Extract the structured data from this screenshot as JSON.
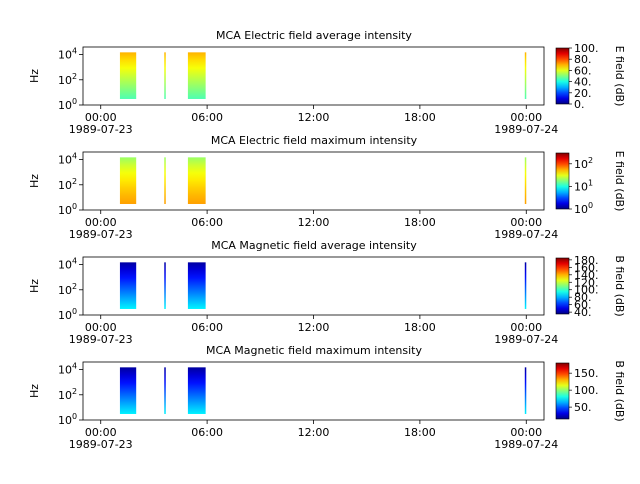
{
  "chart_data": [
    {
      "type": "heatmap",
      "title": "MCA  Electric field average intensity",
      "ylabel": "Hz",
      "y_ticks": [
        {
          "base": "10",
          "exp": "0"
        },
        {
          "base": "10",
          "exp": "2"
        },
        {
          "base": "10",
          "exp": "4"
        }
      ],
      "x_ticks": [
        "00:00",
        "06:00",
        "12:00",
        "18:00",
        "00:00"
      ],
      "x_dates": [
        "1989-07-23",
        "1989-07-24"
      ],
      "colorbar_label": "E field (dB)",
      "colorbar_ticks": [
        "0.",
        "20.",
        "40.",
        "60.",
        "80.",
        "100."
      ],
      "colorbar_range": [
        0,
        100
      ],
      "data_blocks": [
        {
          "start": "01:05",
          "end": "02:00",
          "fmin_hz": 3,
          "fmax_hz": 15000,
          "low_db": 45,
          "high_db": 70
        },
        {
          "start": "03:35",
          "end": "03:40",
          "fmin_hz": 3,
          "fmax_hz": 15000,
          "low_db": 45,
          "high_db": 70
        },
        {
          "start": "04:55",
          "end": "05:55",
          "fmin_hz": 3,
          "fmax_hz": 15000,
          "low_db": 45,
          "high_db": 70
        },
        {
          "start": "23:55",
          "end": "23:58",
          "fmin_hz": 3,
          "fmax_hz": 15000,
          "low_db": 45,
          "high_db": 70
        }
      ]
    },
    {
      "type": "heatmap",
      "title": "MCA  Electric field maximum intensity",
      "ylabel": "Hz",
      "y_ticks": [
        {
          "base": "10",
          "exp": "0"
        },
        {
          "base": "10",
          "exp": "2"
        },
        {
          "base": "10",
          "exp": "4"
        }
      ],
      "x_ticks": [
        "00:00",
        "06:00",
        "12:00",
        "18:00",
        "00:00"
      ],
      "x_dates": [
        "1989-07-23",
        "1989-07-24"
      ],
      "colorbar_label": "E field (dB)",
      "colorbar_ticks": [
        {
          "base": "10",
          "exp": "0"
        },
        {
          "base": "10",
          "exp": "1"
        },
        {
          "base": "10",
          "exp": "2"
        }
      ],
      "colorbar_scale": "log",
      "colorbar_range": [
        1,
        300
      ],
      "data_blocks": [
        {
          "start": "01:05",
          "end": "02:00",
          "fmin_hz": 3,
          "fmax_hz": 15000,
          "low_db": 60,
          "high_db": 20
        },
        {
          "start": "03:35",
          "end": "03:40",
          "fmin_hz": 3,
          "fmax_hz": 15000,
          "low_db": 60,
          "high_db": 20
        },
        {
          "start": "04:55",
          "end": "05:55",
          "fmin_hz": 3,
          "fmax_hz": 15000,
          "low_db": 60,
          "high_db": 20
        },
        {
          "start": "23:55",
          "end": "23:58",
          "fmin_hz": 3,
          "fmax_hz": 15000,
          "low_db": 60,
          "high_db": 20
        }
      ]
    },
    {
      "type": "heatmap",
      "title": "MCA  Magnetic field average intensity",
      "ylabel": "Hz",
      "y_ticks": [
        {
          "base": "10",
          "exp": "0"
        },
        {
          "base": "10",
          "exp": "2"
        },
        {
          "base": "10",
          "exp": "4"
        }
      ],
      "x_ticks": [
        "00:00",
        "06:00",
        "12:00",
        "18:00",
        "00:00"
      ],
      "x_dates": [
        "1989-07-23",
        "1989-07-24"
      ],
      "colorbar_label": "B field (dB)",
      "colorbar_ticks": [
        "40.",
        "60.",
        "80.",
        "100.",
        "120.",
        "140.",
        "160.",
        "180."
      ],
      "colorbar_range": [
        35,
        185
      ],
      "data_blocks": [
        {
          "start": "01:05",
          "end": "02:00",
          "fmin_hz": 3,
          "fmax_hz": 15000,
          "low_db": 90,
          "high_db": 40
        },
        {
          "start": "03:35",
          "end": "03:40",
          "fmin_hz": 3,
          "fmax_hz": 15000,
          "low_db": 90,
          "high_db": 40
        },
        {
          "start": "04:55",
          "end": "05:55",
          "fmin_hz": 3,
          "fmax_hz": 15000,
          "low_db": 90,
          "high_db": 40
        },
        {
          "start": "23:55",
          "end": "23:58",
          "fmin_hz": 3,
          "fmax_hz": 15000,
          "low_db": 90,
          "high_db": 40
        }
      ]
    },
    {
      "type": "heatmap",
      "title": "MCA  Magnetic field maximum intensity",
      "ylabel": "Hz",
      "y_ticks": [
        {
          "base": "10",
          "exp": "0"
        },
        {
          "base": "10",
          "exp": "2"
        },
        {
          "base": "10",
          "exp": "4"
        }
      ],
      "x_ticks": [
        "00:00",
        "06:00",
        "12:00",
        "18:00",
        "00:00"
      ],
      "x_dates": [
        "1989-07-23",
        "1989-07-24"
      ],
      "colorbar_label": "B field (dB)",
      "colorbar_ticks": [
        "50.",
        "100.",
        "150."
      ],
      "colorbar_range": [
        15,
        180
      ],
      "data_blocks": [
        {
          "start": "01:05",
          "end": "02:00",
          "fmin_hz": 3,
          "fmax_hz": 15000,
          "low_db": 75,
          "high_db": 20
        },
        {
          "start": "03:35",
          "end": "03:40",
          "fmin_hz": 3,
          "fmax_hz": 15000,
          "low_db": 75,
          "high_db": 20
        },
        {
          "start": "04:55",
          "end": "05:55",
          "fmin_hz": 3,
          "fmax_hz": 15000,
          "low_db": 75,
          "high_db": 20
        },
        {
          "start": "23:55",
          "end": "23:58",
          "fmin_hz": 3,
          "fmax_hz": 15000,
          "low_db": 75,
          "high_db": 20
        }
      ]
    }
  ]
}
